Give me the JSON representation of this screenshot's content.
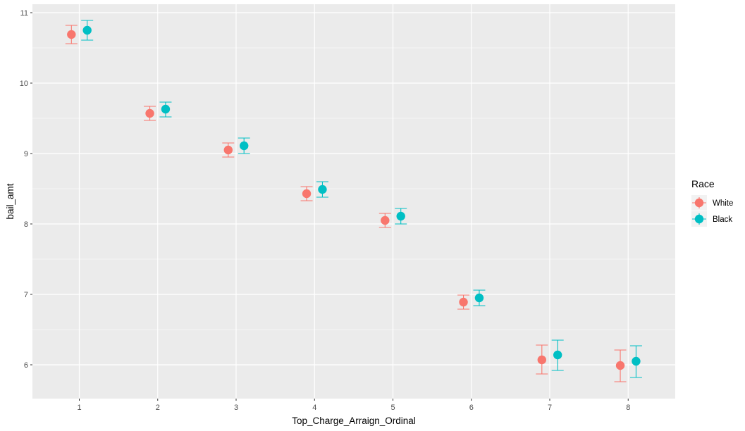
{
  "chart_data": {
    "type": "scatter",
    "xlabel": "Top_Charge_Arraign_Ordinal",
    "ylabel": "bail_amt",
    "x": [
      "1",
      "2",
      "3",
      "4",
      "5",
      "6",
      "7",
      "8"
    ],
    "ylim": [
      5.52,
      11.12
    ],
    "yticks": [
      "6",
      "7",
      "8",
      "9",
      "10",
      "11"
    ],
    "grid": true,
    "legend": {
      "title": "Race",
      "position": "right"
    },
    "series": [
      {
        "name": "White",
        "color": "#F8766D",
        "values": [
          10.69,
          9.57,
          9.05,
          8.43,
          8.05,
          6.89,
          6.07,
          5.99
        ],
        "lower": [
          10.56,
          9.47,
          8.95,
          8.33,
          7.95,
          6.79,
          5.87,
          5.76
        ],
        "upper": [
          10.82,
          9.67,
          9.15,
          8.53,
          8.15,
          6.99,
          6.28,
          6.21
        ]
      },
      {
        "name": "Black",
        "color": "#00BFC4",
        "values": [
          10.75,
          9.63,
          9.11,
          8.49,
          8.11,
          6.95,
          6.14,
          6.05
        ],
        "lower": [
          10.61,
          9.52,
          9.0,
          8.38,
          8.0,
          6.84,
          5.92,
          5.82
        ],
        "upper": [
          10.89,
          9.73,
          9.22,
          8.6,
          8.22,
          7.06,
          6.35,
          6.27
        ]
      }
    ]
  }
}
